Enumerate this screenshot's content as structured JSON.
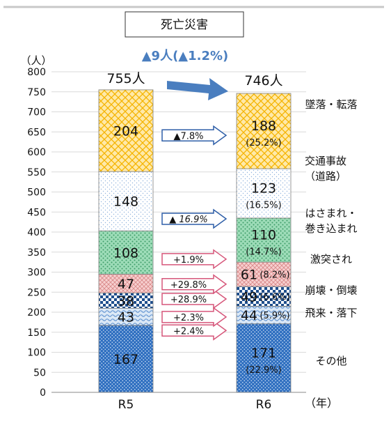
{
  "chart_data": {
    "type": "bar",
    "stacked": true,
    "title": "死亡災害",
    "ylabel": "（人）",
    "xlabel": "（年）",
    "ylim": [
      0,
      800
    ],
    "yticks": [
      0,
      50,
      100,
      150,
      200,
      250,
      300,
      350,
      400,
      450,
      500,
      550,
      600,
      650,
      700,
      750,
      800
    ],
    "categories": [
      "R5",
      "R6"
    ],
    "totals": {
      "R5": "755人",
      "R6": "746人"
    },
    "total_change": "▲9人(▲1.2%)",
    "series": [
      {
        "name": "その他",
        "values": [
          167,
          171
        ],
        "r6_share": "(22.9%)",
        "change": "+2.4%",
        "color": "#4f81bd"
      },
      {
        "name": "飛来・落下",
        "values": [
          43,
          44
        ],
        "r6_share": "(5.9%)",
        "change": "+2.3%",
        "color": "#8db3e2"
      },
      {
        "name": "崩壊・倒壊",
        "values": [
          38,
          49
        ],
        "r6_share": "(6.6%)",
        "change": "+28.9%",
        "color": "#4f81bd"
      },
      {
        "name": "激突され",
        "values": [
          47,
          61
        ],
        "r6_share": "(8.2%)",
        "change": "+29.8%",
        "color": "#e6a0a0"
      },
      {
        "name": "はさまれ・巻き込まれ",
        "label_lines": [
          "はさまれ・",
          "巻き込まれ"
        ],
        "values": [
          108,
          110
        ],
        "r6_share": "(14.7%)",
        "change": "+1.9%",
        "color": "#7fd1a4"
      },
      {
        "name": "交通事故（道路）",
        "label_lines": [
          "交通事故",
          "（道路）"
        ],
        "values": [
          148,
          123
        ],
        "r6_share": "(16.5%)",
        "change": "▲ 16.9%",
        "color": "#9dc3e6"
      },
      {
        "name": "墜落・転落",
        "values": [
          204,
          188
        ],
        "r6_share": "(25.2%)",
        "change": "▲7.8%",
        "color": "#ffc000"
      }
    ]
  }
}
